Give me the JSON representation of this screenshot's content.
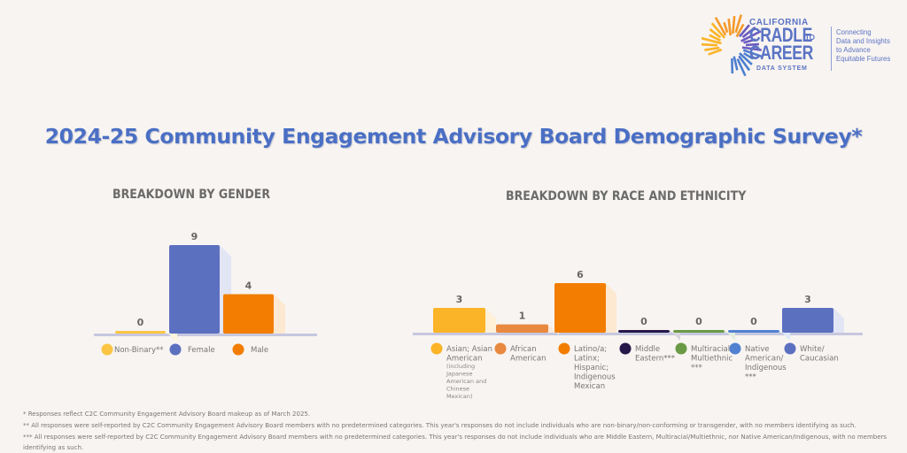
{
  "logo": {
    "line1": "CALIFORNIA",
    "line2": "CRADLE",
    "line2_suffix": "TO",
    "line3": "CAREER",
    "line4": "DATA SYSTEM",
    "tagline": "Connecting\nData and Insights\nto Advance\nEquitable Futures"
  },
  "title": "2024-25 Community Engagement Advisory Board Demographic Survey*",
  "colors": {
    "yellow": "#fbb327",
    "orange_light": "#e8893f",
    "orange": "#f27d00",
    "dark_purple": "#27184a",
    "green": "#6a9a45",
    "blue_light": "#5182d2",
    "blue": "#5c70c0",
    "baseline": "#c6c8e0",
    "title_blue": "#4a6fc4"
  },
  "chart_data": [
    {
      "type": "bar",
      "title": "BREAKDOWN BY GENDER",
      "categories": [
        "Non-Binary**",
        "Female",
        "Male"
      ],
      "values": [
        0,
        9,
        4
      ],
      "colors": [
        "#fbc543",
        "#5c70c0",
        "#f27d00"
      ],
      "legend": "bottom",
      "ylim": [
        0,
        9
      ],
      "grid": false
    },
    {
      "type": "bar",
      "title": "BREAKDOWN BY RACE AND ETHNICITY",
      "categories": [
        "Asian; Asian American (including Japanese American and Chinese Mexican)",
        "African American",
        "Latino/a; Latinx; Hispanic; Indigenous Mexican",
        "Middle Eastern***",
        "Multiracial/ Multiethnic ***",
        "Native American/ Indigenous ***",
        "White/ Caucasian"
      ],
      "legend_lines": [
        [
          "Asian; Asian",
          "American"
        ],
        [
          "African",
          "American"
        ],
        [
          "Latino/a;",
          "Latinx;",
          "Hispanic;",
          "Indigenous",
          "Mexican"
        ],
        [
          "Middle",
          "Eastern***"
        ],
        [
          "Multiracial/",
          "Multiethnic",
          "***"
        ],
        [
          "Native",
          "American/",
          "Indigenous",
          "***"
        ],
        [
          "White/",
          "Caucasian"
        ]
      ],
      "legend_sublines": [
        [
          "(including",
          "Japanese",
          "American and",
          "Chinese",
          "Mexican)"
        ],
        [],
        [],
        [],
        [],
        [],
        []
      ],
      "values": [
        3,
        1,
        6,
        0,
        0,
        0,
        3
      ],
      "colors": [
        "#fbb327",
        "#e8893f",
        "#f27d00",
        "#27184a",
        "#6a9a45",
        "#5182d2",
        "#5c70c0"
      ],
      "legend": "bottom",
      "ylim": [
        0,
        6
      ],
      "grid": false
    }
  ],
  "footnotes": [
    "* Responses reflect C2C Community Engagement Advisory Board makeup as of March 2025.",
    "** All responses were self-reported by C2C Community Engagement Advisory Board members with no predetermined categories. This year's responses do not include individuals who are non-binary/non-conforming or transgender, with no members identifying as such.",
    "*** All responses were self-reported by C2C Community Engagement Advisory Board members with no predetermined categories. This year's responses do  not include individuals who are Middle Eastern, Multiracial/Multiethnic, nor Native American/Indigenous, with no members identifying as such."
  ]
}
